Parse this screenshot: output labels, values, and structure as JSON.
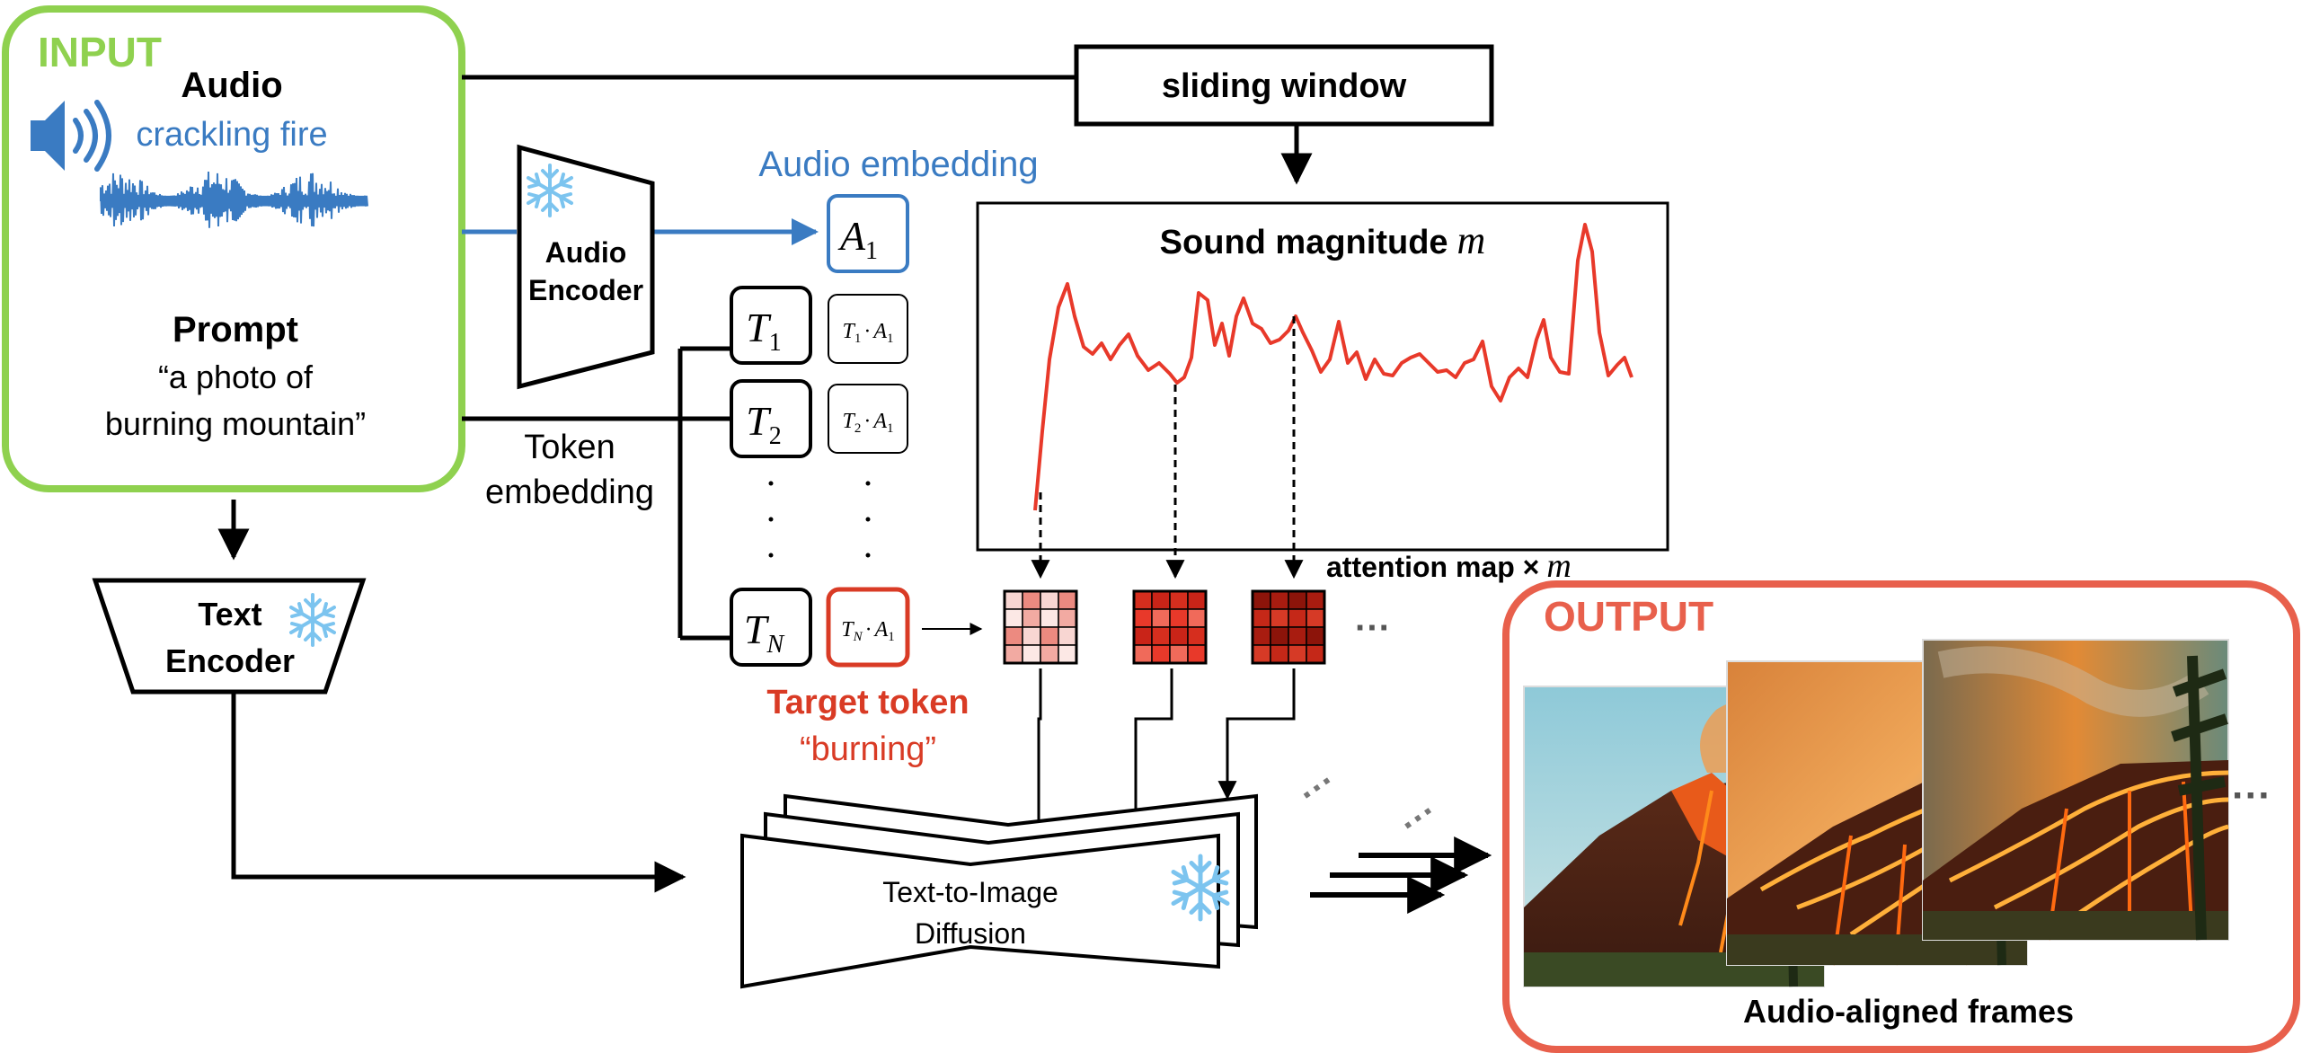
{
  "input": {
    "tag": "INPUT",
    "audio_title": "Audio",
    "audio_caption": "crackling fire",
    "prompt_title": "Prompt",
    "prompt_line1": "“a photo of",
    "prompt_line2": "burning mountain”"
  },
  "sliding_window": "sliding window",
  "audio_encoder": {
    "line1": "Audio",
    "line2": "Encoder"
  },
  "audio_embedding": "Audio embedding",
  "token_embedding": {
    "line1": "Token",
    "line2": "embedding"
  },
  "text_encoder": {
    "line1": "Text",
    "line2": "Encoder"
  },
  "sound_magnitude": {
    "label": "Sound magnitude",
    "symbol": "m"
  },
  "attention_map": {
    "label": "attention map ×",
    "symbol": "m"
  },
  "tokens": {
    "a1": {
      "base": "A",
      "sub": "1"
    },
    "t1": {
      "base": "T",
      "sub": "1"
    },
    "t2": {
      "base": "T",
      "sub": "2"
    },
    "tn": {
      "base": "T",
      "sub": "N"
    },
    "p1": {
      "t": "T",
      "ts": "1",
      "dot": "·",
      "a": "A",
      "as": "1"
    },
    "p2": {
      "t": "T",
      "ts": "2",
      "dot": "·",
      "a": "A",
      "as": "1"
    },
    "pn": {
      "t": "T",
      "ts": "N",
      "dot": "·",
      "a": "A",
      "as": "1"
    }
  },
  "target_token": {
    "line1": "Target token",
    "line2": "“burning”"
  },
  "diffusion": {
    "line1": "Text-to-Image",
    "line2": "Diffusion"
  },
  "output": {
    "tag": "OUTPUT",
    "caption": "Audio-aligned frames"
  },
  "ellipsis": "···",
  "colors": {
    "input_green": "#8fd14f",
    "audio_blue": "#3a7bc2",
    "output_red": "#e8604c",
    "target_red": "#d93b25",
    "signal_red": "#e8392a",
    "snow_blue": "#7cc4ef"
  },
  "icons": [
    "speaker-icon",
    "waveform-icon",
    "snowflake-icon",
    "attention-grid-icon",
    "volcano-frame-image"
  ]
}
